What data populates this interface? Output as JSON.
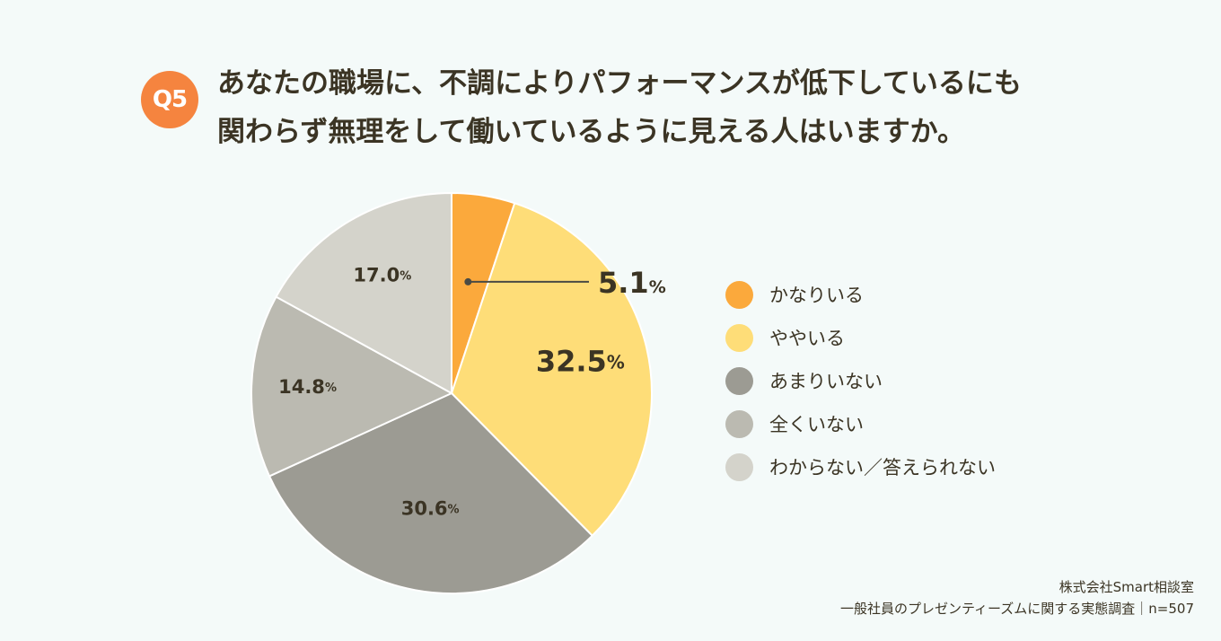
{
  "badge": "Q5",
  "title_lines": [
    "あなたの職場に、不調によりパフォーマンスが低下しているにも",
    "関わらず無理をして働いているように見える人はいますか。"
  ],
  "chart_data": {
    "type": "pie",
    "start_angle": "12 o'clock, clockwise",
    "slices": [
      {
        "label": "かなりいる",
        "value": 5.1,
        "display": "5.1",
        "color": "#fba93c"
      },
      {
        "label": "ややいる",
        "value": 32.5,
        "display": "32.5",
        "color": "#fedd78"
      },
      {
        "label": "あまりいない",
        "value": 30.6,
        "display": "30.6",
        "color": "#9c9b93"
      },
      {
        "label": "全くいない",
        "value": 14.8,
        "display": "14.8",
        "color": "#bbbab1"
      },
      {
        "label": "わからない／答えられない",
        "value": 17.0,
        "display": "17.0",
        "color": "#d4d3cb"
      }
    ],
    "unit": "%",
    "legend_position": "right"
  },
  "footer": {
    "company": "株式会社Smart相談室",
    "source": "一般社員のプレゼンティーズムに関する実態調査｜n=507"
  }
}
